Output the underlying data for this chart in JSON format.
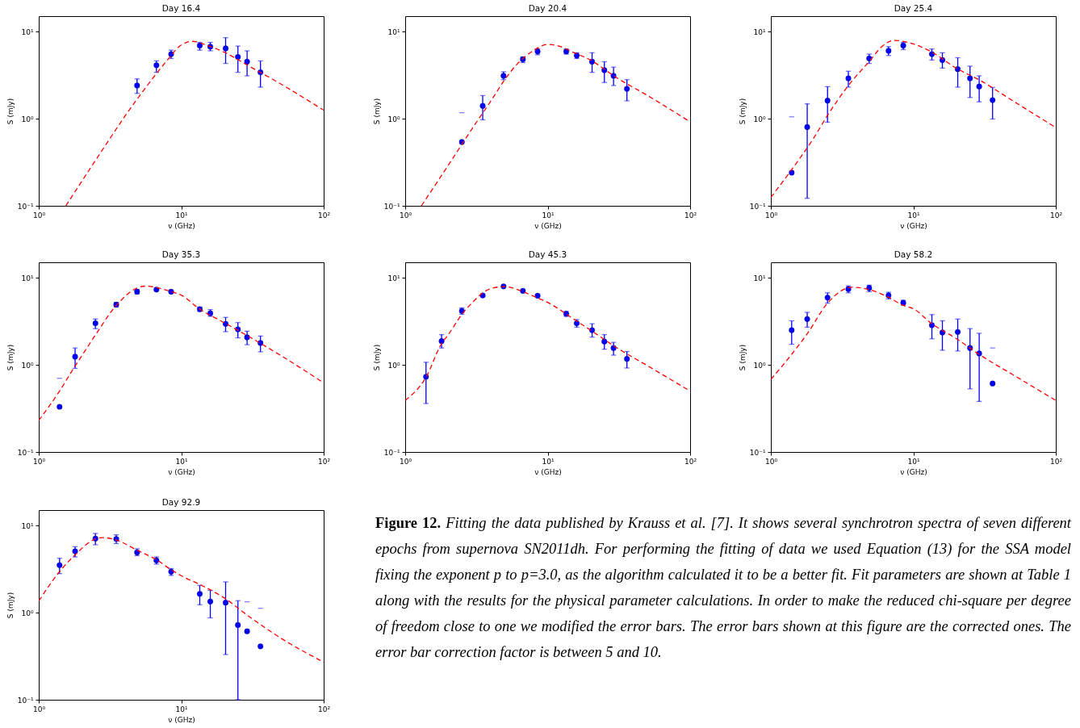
{
  "chart_data": [
    {
      "type": "scatter",
      "title": "Day 16.4",
      "xlabel": "ν (GHz)",
      "ylabel": "S (mJy)",
      "log": "xy",
      "xlim": [
        1,
        100
      ],
      "ylim": [
        0.1,
        15
      ],
      "xticks": [
        {
          "value": 1,
          "label": "10⁰"
        },
        {
          "value": 10,
          "label": "10¹"
        },
        {
          "value": 100,
          "label": "10²"
        }
      ],
      "yticks": [
        {
          "value": 0.1,
          "label": "10⁻¹"
        },
        {
          "value": 1,
          "label": "10⁰"
        },
        {
          "value": 10,
          "label": "10¹"
        }
      ],
      "series": [
        {
          "type": "scatter",
          "color": "#0000ff",
          "marker": "circle",
          "x": [
            4.9,
            6.7,
            8.5,
            13.5,
            16,
            20.5,
            25,
            29,
            36
          ],
          "values": [
            2.4,
            4.1,
            5.5,
            6.9,
            6.7,
            6.4,
            5.1,
            4.5,
            3.4
          ],
          "errors": [
            [
              1.95,
              2.86
            ],
            [
              3.4,
              4.6
            ],
            [
              4.9,
              6.1
            ],
            [
              6.1,
              7.5
            ],
            [
              6.0,
              7.5
            ],
            [
              4.3,
              8.5
            ],
            [
              3.4,
              6.8
            ],
            [
              3.1,
              6.0
            ],
            [
              2.3,
              4.6
            ]
          ]
        },
        {
          "type": "line",
          "color": "#ff0000",
          "line_style": "dashed",
          "x": [
            1.55,
            2,
            3,
            4,
            5,
            6,
            7,
            8,
            10,
            12,
            15,
            20,
            30,
            50,
            100
          ],
          "values": [
            0.1,
            0.19,
            0.52,
            1.05,
            1.75,
            2.6,
            3.6,
            4.7,
            7.0,
            7.7,
            7.0,
            5.8,
            4.0,
            2.5,
            1.25
          ]
        }
      ]
    },
    {
      "type": "scatter",
      "title": "Day 20.4",
      "xlabel": "ν (GHz)",
      "ylabel": "S (mJy)",
      "log": "xy",
      "xlim": [
        1,
        100
      ],
      "ylim": [
        0.1,
        15
      ],
      "xticks": [
        {
          "value": 1,
          "label": "10⁰"
        },
        {
          "value": 10,
          "label": "10¹"
        },
        {
          "value": 100,
          "label": "10²"
        }
      ],
      "yticks": [
        {
          "value": 0.1,
          "label": "10⁻¹"
        },
        {
          "value": 1,
          "label": "10⁰"
        },
        {
          "value": 10,
          "label": "10¹"
        }
      ],
      "series": [
        {
          "type": "scatter",
          "color": "#0000ff",
          "marker": "circle",
          "x": [
            2.5,
            3.5,
            4.9,
            6.7,
            8.5,
            13.5,
            16,
            20.5,
            25,
            29,
            36
          ],
          "values": [
            0.54,
            1.4,
            3.1,
            4.8,
            5.9,
            5.9,
            5.3,
            4.5,
            3.6,
            3.1,
            2.2
          ],
          "errors": [
            null,
            [
              0.97,
              1.84
            ],
            [
              2.8,
              3.45
            ],
            [
              4.4,
              5.1
            ],
            [
              5.4,
              6.3
            ],
            [
              5.5,
              6.3
            ],
            [
              4.9,
              5.7
            ],
            [
              3.4,
              5.7
            ],
            [
              2.6,
              4.5
            ],
            [
              2.4,
              3.9
            ],
            [
              1.6,
              2.8
            ]
          ]
        },
        {
          "type": "line",
          "color": "#ff0000",
          "line_style": "dashed",
          "x": [
            1.3,
            2,
            3,
            4,
            5,
            6,
            7,
            8,
            10,
            12,
            15,
            20,
            30,
            50,
            100
          ],
          "values": [
            0.1,
            0.29,
            0.8,
            1.6,
            2.8,
            4.1,
            5.2,
            6.1,
            7.1,
            6.8,
            5.8,
            4.7,
            3.0,
            1.85,
            0.92
          ]
        },
        {
          "type": "scatter",
          "color": "#8080ff",
          "x": [
            2.5
          ],
          "values": [
            1.17
          ]
        }
      ]
    },
    {
      "type": "scatter",
      "title": "Day 25.4",
      "xlabel": "ν (GHz)",
      "ylabel": "S (mJy)",
      "log": "xy",
      "xlim": [
        1,
        100
      ],
      "ylim": [
        0.1,
        15
      ],
      "xticks": [
        {
          "value": 1,
          "label": "10⁰"
        },
        {
          "value": 10,
          "label": "10¹"
        },
        {
          "value": 100,
          "label": "10²"
        }
      ],
      "yticks": [
        {
          "value": 0.1,
          "label": "10⁻¹"
        },
        {
          "value": 1,
          "label": "10⁰"
        },
        {
          "value": 10,
          "label": "10¹"
        }
      ],
      "series": [
        {
          "type": "scatter",
          "color": "#0000ff",
          "marker": "circle",
          "x": [
            1.4,
            1.8,
            2.5,
            3.5,
            4.9,
            6.7,
            8.5,
            13.5,
            16,
            20.5,
            25,
            29,
            36
          ],
          "values": [
            0.24,
            0.8,
            1.61,
            2.9,
            4.9,
            6.0,
            6.9,
            5.5,
            4.7,
            3.7,
            2.9,
            2.34,
            1.63
          ],
          "errors": [
            null,
            [
              0.122,
              1.48
            ],
            [
              0.91,
              2.33
            ],
            [
              2.3,
              3.5
            ],
            [
              4.3,
              5.5
            ],
            [
              5.3,
              6.7
            ],
            [
              6.2,
              7.5
            ],
            [
              4.7,
              6.3
            ],
            [
              3.8,
              5.7
            ],
            [
              2.3,
              5.0
            ],
            [
              1.75,
              4.0
            ],
            [
              1.56,
              3.1
            ],
            [
              0.99,
              2.28
            ]
          ]
        },
        {
          "type": "line",
          "color": "#ff0000",
          "line_style": "dashed",
          "x": [
            1,
            1.4,
            2,
            2.5,
            3.5,
            5,
            6,
            7.3,
            10,
            13.5,
            20,
            30,
            50,
            100
          ],
          "values": [
            0.125,
            0.26,
            0.6,
            1.09,
            2.4,
            4.7,
            6.7,
            7.9,
            7.2,
            5.8,
            3.8,
            2.7,
            1.6,
            0.79
          ]
        },
        {
          "type": "scatter",
          "color": "#8080ff",
          "x": [
            1.4
          ],
          "values": [
            1.05
          ]
        }
      ]
    },
    {
      "type": "scatter",
      "title": "Day 35.3",
      "xlabel": "ν (GHz)",
      "ylabel": "S (mJy)",
      "log": "xy",
      "xlim": [
        1,
        100
      ],
      "ylim": [
        0.1,
        15
      ],
      "xticks": [
        {
          "value": 1,
          "label": "10⁰"
        },
        {
          "value": 10,
          "label": "10¹"
        },
        {
          "value": 100,
          "label": "10²"
        }
      ],
      "yticks": [
        {
          "value": 0.1,
          "label": "10⁻¹"
        },
        {
          "value": 1,
          "label": "10⁰"
        },
        {
          "value": 10,
          "label": "10¹"
        }
      ],
      "series": [
        {
          "type": "scatter",
          "color": "#0000ff",
          "marker": "circle",
          "x": [
            1.4,
            1.8,
            2.5,
            3.5,
            4.9,
            6.7,
            8.5,
            13.5,
            16,
            20.5,
            25,
            29,
            36
          ],
          "values": [
            0.33,
            1.24,
            3.0,
            4.9,
            6.9,
            7.3,
            6.9,
            4.35,
            3.9,
            2.95,
            2.55,
            2.07,
            1.78
          ],
          "errors": [
            null,
            [
              0.91,
              1.56
            ],
            [
              2.6,
              3.35
            ],
            [
              4.6,
              5.2
            ],
            [
              6.5,
              7.3
            ],
            null,
            null,
            [
              4.1,
              4.6
            ],
            [
              3.6,
              4.3
            ],
            [
              2.4,
              3.5
            ],
            [
              2.04,
              3.05
            ],
            [
              1.7,
              2.43
            ],
            [
              1.41,
              2.14
            ]
          ]
        },
        {
          "type": "line",
          "color": "#ff0000",
          "line_style": "dashed",
          "x": [
            1,
            1.4,
            1.8,
            2,
            2.5,
            3.5,
            4.9,
            5.6,
            6.7,
            8.5,
            10,
            13.5,
            20,
            30,
            50,
            100
          ],
          "values": [
            0.23,
            0.5,
            0.97,
            1.26,
            2.2,
            4.8,
            7.6,
            8.0,
            7.7,
            6.9,
            6.3,
            4.35,
            3.05,
            2.1,
            1.28,
            0.62
          ]
        },
        {
          "type": "scatter",
          "color": "#8080ff",
          "x": [
            1.4
          ],
          "values": [
            0.7
          ]
        }
      ]
    },
    {
      "type": "scatter",
      "title": "Day 45.3",
      "xlabel": "ν (GHz)",
      "ylabel": "S (mJy)",
      "log": "xy",
      "xlim": [
        1,
        100
      ],
      "ylim": [
        0.1,
        15
      ],
      "xticks": [
        {
          "value": 1,
          "label": "10⁰"
        },
        {
          "value": 10,
          "label": "10¹"
        },
        {
          "value": 100,
          "label": "10²"
        }
      ],
      "yticks": [
        {
          "value": 0.1,
          "label": "10⁻¹"
        },
        {
          "value": 1,
          "label": "10⁰"
        },
        {
          "value": 10,
          "label": "10¹"
        }
      ],
      "series": [
        {
          "type": "scatter",
          "color": "#0000ff",
          "marker": "circle",
          "x": [
            1.4,
            1.8,
            2.5,
            3.5,
            4.9,
            6.7,
            8.5,
            13.5,
            16,
            20.5,
            25,
            29,
            36
          ],
          "values": [
            0.73,
            1.87,
            4.15,
            6.25,
            7.95,
            7.05,
            6.2,
            3.85,
            3.0,
            2.5,
            1.85,
            1.56,
            1.17
          ],
          "errors": [
            [
              0.36,
              1.07
            ],
            [
              1.56,
              2.22
            ],
            [
              3.8,
              4.5
            ],
            null,
            null,
            null,
            null,
            [
              3.6,
              4.1
            ],
            [
              2.7,
              3.3
            ],
            [
              2.08,
              2.96
            ],
            [
              1.51,
              2.22
            ],
            [
              1.29,
              1.81
            ],
            [
              0.92,
              1.42
            ]
          ]
        },
        {
          "type": "line",
          "color": "#ff0000",
          "line_style": "dashed",
          "x": [
            1,
            1.4,
            1.8,
            2,
            2.5,
            3,
            3.5,
            4,
            5,
            6,
            8,
            10,
            15,
            20,
            30,
            50,
            100
          ],
          "values": [
            0.39,
            0.72,
            1.75,
            2.2,
            3.8,
            5.3,
            6.7,
            7.5,
            7.9,
            7.4,
            6.1,
            5.2,
            3.4,
            2.5,
            1.6,
            0.98,
            0.5
          ]
        }
      ]
    },
    {
      "type": "scatter",
      "title": "Day 58.2",
      "xlabel": "ν (GHz)",
      "ylabel": "S (mJy)",
      "log": "xy",
      "xlim": [
        1,
        100
      ],
      "ylim": [
        0.1,
        15
      ],
      "xticks": [
        {
          "value": 1,
          "label": "10⁰"
        },
        {
          "value": 10,
          "label": "10¹"
        },
        {
          "value": 100,
          "label": "10²"
        }
      ],
      "yticks": [
        {
          "value": 0.1,
          "label": "10⁻¹"
        },
        {
          "value": 1,
          "label": "10⁰"
        },
        {
          "value": 10,
          "label": "10¹"
        }
      ],
      "series": [
        {
          "type": "scatter",
          "color": "#0000ff",
          "marker": "circle",
          "x": [
            1.4,
            1.8,
            2.5,
            3.5,
            4.9,
            6.7,
            8.5,
            13.5,
            16,
            20.5,
            25,
            29,
            36
          ],
          "values": [
            2.5,
            3.35,
            5.9,
            7.4,
            7.6,
            6.25,
            5.15,
            2.85,
            2.35,
            2.38,
            1.56,
            1.35,
            0.61
          ],
          "errors": [
            [
              1.72,
              3.2
            ],
            [
              2.7,
              4.0
            ],
            [
              5.1,
              6.7
            ],
            [
              6.7,
              8.05
            ],
            [
              6.9,
              8.2
            ],
            [
              5.7,
              6.8
            ],
            [
              4.85,
              5.5
            ],
            [
              1.99,
              3.77
            ],
            [
              1.47,
              3.2
            ],
            [
              1.44,
              3.35
            ],
            [
              0.53,
              2.6
            ],
            [
              0.38,
              2.3
            ],
            null
          ]
        },
        {
          "type": "line",
          "color": "#ff0000",
          "line_style": "dashed",
          "x": [
            1,
            1.4,
            1.8,
            2.5,
            3.7,
            4.9,
            6.7,
            8.5,
            10,
            13.5,
            20,
            30,
            50,
            100
          ],
          "values": [
            0.68,
            1.32,
            2.27,
            5.1,
            7.76,
            7.3,
            5.95,
            4.8,
            4.4,
            2.96,
            2.0,
            1.27,
            0.77,
            0.39
          ]
        },
        {
          "type": "scatter",
          "color": "#8080ff",
          "x": [
            36
          ],
          "values": [
            1.56
          ]
        }
      ]
    },
    {
      "type": "scatter",
      "title": "Day 92.9",
      "xlabel": "ν (GHz)",
      "ylabel": "S (mJy)",
      "log": "xy",
      "xlim": [
        1,
        100
      ],
      "ylim": [
        0.1,
        15
      ],
      "xticks": [
        {
          "value": 1,
          "label": "10⁰"
        },
        {
          "value": 10,
          "label": "10¹"
        },
        {
          "value": 100,
          "label": "10²"
        }
      ],
      "yticks": [
        {
          "value": 0.1,
          "label": "10⁻¹"
        },
        {
          "value": 1,
          "label": "10⁰"
        },
        {
          "value": 10,
          "label": "10¹"
        }
      ],
      "annotations": [
        "Figure 12. Fitting the data published by Krauss et al. [7]. It shows several synchrotron spectra of seven different epochs from supernova SN2011dh. For performing the fitting of data we used Equation (13) for the SSA model fixing the exponent p to p=3.0, as the algorithm calculated it to be a better fit. Fit parameters are shown at Table 1 along with the results for the physical parameter calculations. In order to make the reduced chi-square per degree of freedom close to one we modified the error bars. The error bars shown at this figure are the corrected ones. The error bar correction factor is between 5 and 10."
      ],
      "series": [
        {
          "type": "scatter",
          "color": "#0000ff",
          "marker": "circle",
          "x": [
            1.4,
            1.8,
            2.5,
            3.5,
            4.9,
            6.7,
            8.5,
            13.5,
            16,
            20.5,
            25,
            29,
            36
          ],
          "values": [
            3.5,
            5.05,
            7.06,
            7.0,
            4.9,
            3.97,
            2.95,
            1.64,
            1.34,
            1.3,
            0.72,
            0.61,
            0.41
          ],
          "errors": [
            [
              2.8,
              4.2
            ],
            [
              4.35,
              5.7
            ],
            [
              6.0,
              8.1
            ],
            [
              6.2,
              7.8
            ],
            [
              4.5,
              5.4
            ],
            [
              3.6,
              4.35
            ],
            [
              2.67,
              3.2
            ],
            [
              1.23,
              2.05
            ],
            [
              0.87,
              1.8
            ],
            [
              0.33,
              2.25
            ],
            [
              0.1,
              1.37
            ],
            null,
            null
          ]
        },
        {
          "type": "line",
          "color": "#ff0000",
          "line_style": "dashed",
          "x": [
            1,
            1.4,
            1.8,
            2.5,
            2.8,
            3.5,
            4.9,
            6.7,
            8.5,
            10,
            13.5,
            20,
            30,
            50,
            100
          ],
          "values": [
            1.36,
            2.95,
            4.6,
            7.0,
            7.26,
            6.8,
            5.2,
            4.05,
            3.1,
            2.65,
            2.1,
            1.48,
            0.9,
            0.51,
            0.27
          ]
        },
        {
          "type": "scatter",
          "color": "#8080ff",
          "x": [
            29,
            36
          ],
          "values": [
            1.33,
            1.12
          ]
        }
      ]
    }
  ]
}
